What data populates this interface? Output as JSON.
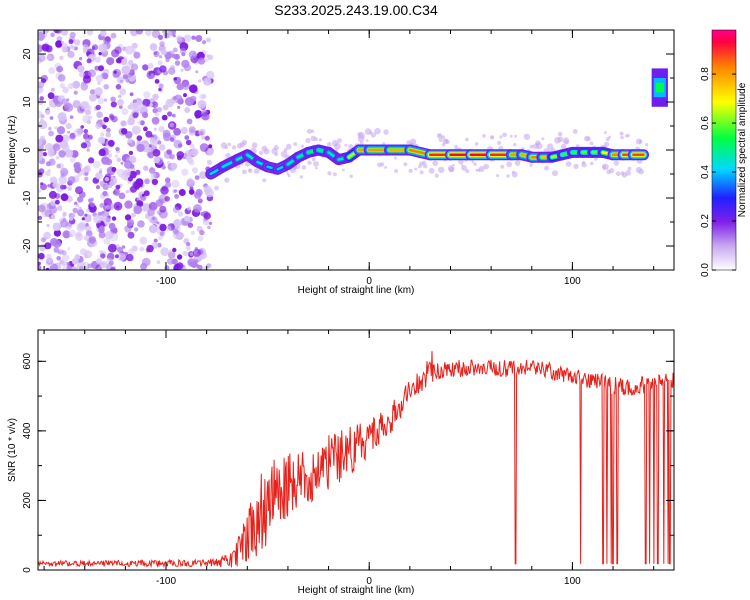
{
  "figure_title": "S233.2025.243.19.00.C34",
  "colors": {
    "snr_line": "#e8201a",
    "axis": "#000000",
    "colormap": [
      "#ffffff",
      "#c8a8f0",
      "#8020e8",
      "#2020ff",
      "#00d8ff",
      "#00ff40",
      "#ffff00",
      "#ff8000",
      "#ff0040",
      "#ff0090"
    ]
  },
  "chart_data": [
    {
      "type": "heatmap",
      "title": "S233.2025.243.19.00.C34",
      "xlabel": "Height of straight line (km)",
      "ylabel": "Frequency (Hz)",
      "xlim": [
        -163,
        150
      ],
      "ylim": [
        -25,
        25
      ],
      "xticks": [
        -100,
        0,
        100
      ],
      "yticks": [
        -20,
        -10,
        0,
        10,
        20
      ],
      "noise_region_x": [
        -163,
        -78
      ],
      "ridge": {
        "x": [
          -78,
          -72,
          -65,
          -60,
          -55,
          -50,
          -45,
          -40,
          -35,
          -30,
          -25,
          -20,
          -15,
          -10,
          -5,
          0,
          10,
          20,
          30,
          40,
          50,
          60,
          70,
          75,
          80,
          85,
          90,
          95,
          100,
          105,
          110,
          115,
          120,
          125,
          130,
          135
        ],
        "freq": [
          -5,
          -3.5,
          -2,
          -1,
          -2.5,
          -3.5,
          -4,
          -3,
          -1.5,
          -0.5,
          0,
          -0.5,
          -2,
          -1.5,
          0,
          0,
          0,
          0,
          -1,
          -1,
          -1,
          -1,
          -1,
          -1,
          -1.5,
          -1.5,
          -1.5,
          -1,
          -0.5,
          -0.5,
          -0.5,
          -0.5,
          -1,
          -1,
          -1,
          -1
        ],
        "amp": [
          0.4,
          0.45,
          0.45,
          0.5,
          0.45,
          0.45,
          0.4,
          0.45,
          0.5,
          0.5,
          0.55,
          0.5,
          0.45,
          0.5,
          0.8,
          0.85,
          0.8,
          0.8,
          0.9,
          0.95,
          0.95,
          0.95,
          0.9,
          0.75,
          0.85,
          0.85,
          0.7,
          0.6,
          0.55,
          0.6,
          0.6,
          0.6,
          0.8,
          0.9,
          0.9,
          0.9
        ]
      },
      "spike": {
        "x": 143,
        "freq": 13,
        "amp": 0.55
      },
      "colorbar": {
        "label": "Normalized spectral amplitude",
        "ticks": [
          "0.0",
          "0.2",
          "0.4",
          "0.6",
          "0.8"
        ],
        "range": [
          0,
          0.98
        ]
      }
    },
    {
      "type": "line",
      "xlabel": "Height of straight line (km)",
      "ylabel": "SNR (10 * v/v)",
      "xlim": [
        -163,
        150
      ],
      "ylim": [
        0,
        690
      ],
      "xticks": [
        -100,
        0,
        100
      ],
      "yticks": [
        0,
        200,
        400,
        600
      ],
      "series": [
        {
          "name": "SNR",
          "envelope_x": [
            -163,
            -80,
            -72,
            -65,
            -60,
            -55,
            -50,
            -45,
            -40,
            -30,
            -20,
            -10,
            0,
            10,
            15,
            20,
            25,
            30,
            40,
            60,
            80,
            100,
            110,
            120,
            130,
            140,
            150
          ],
          "envelope_y": [
            18,
            20,
            25,
            50,
            100,
            150,
            200,
            230,
            240,
            270,
            310,
            340,
            380,
            430,
            470,
            520,
            540,
            560,
            580,
            580,
            580,
            560,
            545,
            530,
            525,
            540,
            545
          ],
          "envelope_noise": [
            8,
            10,
            20,
            45,
            80,
            110,
            130,
            110,
            100,
            90,
            80,
            70,
            55,
            45,
            40,
            35,
            30,
            30,
            25,
            25,
            25,
            25,
            25,
            25,
            25,
            25,
            25
          ],
          "dropouts_x": [
            72,
            104,
            115,
            117,
            119,
            120,
            122,
            136,
            138,
            140,
            142,
            145,
            147,
            148
          ],
          "dropout_level": 18
        }
      ]
    }
  ]
}
